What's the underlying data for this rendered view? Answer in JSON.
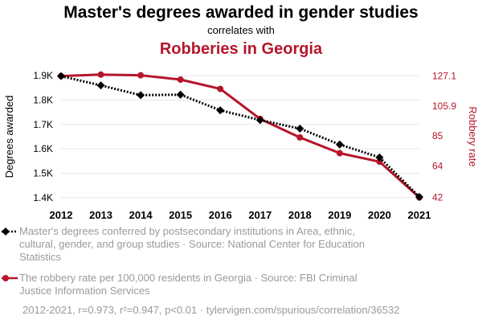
{
  "header": {
    "title": "Master's degrees awarded in gender studies",
    "subtitle": "correlates with",
    "title2": "Robberies in Georgia"
  },
  "chart_data": {
    "type": "line",
    "x": [
      2012,
      2013,
      2014,
      2015,
      2016,
      2017,
      2018,
      2019,
      2020,
      2021
    ],
    "xlim": [
      2012,
      2021
    ],
    "series": [
      {
        "axis": "left",
        "color": "#000000",
        "style": "dotted",
        "marker": "diamond",
        "values": [
          1898,
          1860,
          1820,
          1822,
          1758,
          1718,
          1683,
          1618,
          1565,
          1403
        ]
      },
      {
        "axis": "right",
        "color": "#b5162b",
        "style": "solid",
        "marker": "circle",
        "values": [
          127.0,
          128.0,
          127.5,
          124.5,
          118.0,
          97.0,
          84.0,
          73.0,
          67.0,
          42.0
        ]
      }
    ],
    "left_axis": {
      "label": "Degrees awarded",
      "ylim": [
        1380,
        1920
      ],
      "ticks": [
        1400,
        1500,
        1600,
        1700,
        1800,
        1900
      ],
      "tick_labels": [
        "1.4K",
        "1.5K",
        "1.6K",
        "1.7K",
        "1.8K",
        "1.9K"
      ]
    },
    "right_axis": {
      "label": "Robbery rate",
      "ylim": [
        38.4,
        130.7
      ],
      "ticks": [
        42,
        64,
        85,
        105.9,
        127.1
      ],
      "tick_labels": [
        "42",
        "64",
        "85",
        "105.9",
        "127.1"
      ]
    },
    "grid": true
  },
  "legend": [
    {
      "color": "#000000",
      "marker": "diamond",
      "lines": [
        "Master's degrees conferred by postsecondary institutions in Area, ethnic,",
        "cultural, gender, and group studies · Source: National Center for Education",
        "Statistics"
      ]
    },
    {
      "color": "#b5162b",
      "marker": "circle",
      "lines": [
        "The robbery rate per 100,000 residents in Georgia · Source: FBI Criminal",
        "Justice Information Services"
      ]
    }
  ],
  "footer": "2012-2021, r=0.973, r²=0.947, p<0.01 · tylervigen.com/spurious/correlation/36532"
}
